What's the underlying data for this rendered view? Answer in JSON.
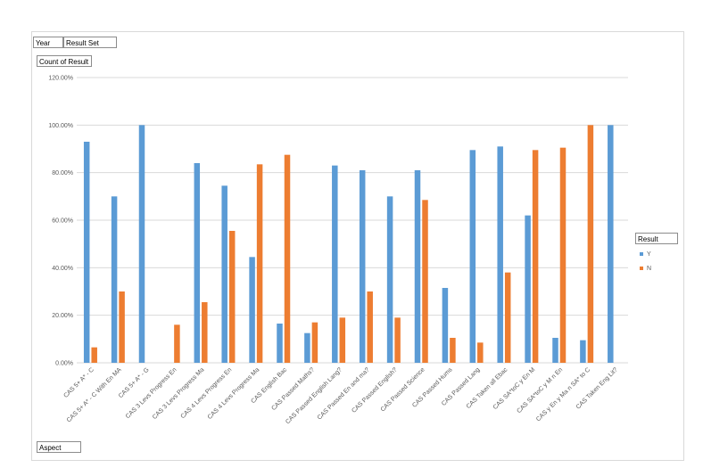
{
  "pivot_fields": {
    "filter_year": "Year",
    "filter_result_set": "Result Set",
    "values_field": "Count of Result",
    "legend_field": "Result",
    "axis_field": "Aspect"
  },
  "colors": {
    "Y": "#5b9bd5",
    "N": "#ed7d31",
    "grid": "#d9d9d9"
  },
  "chart_data": {
    "type": "bar",
    "title": "",
    "xlabel": "",
    "ylabel": "",
    "ylim": [
      0,
      120
    ],
    "yticks": [
      0,
      20,
      40,
      60,
      80,
      100,
      120
    ],
    "ytick_labels": [
      "0.00%",
      "20.00%",
      "40.00%",
      "60.00%",
      "80.00%",
      "100.00%",
      "120.00%"
    ],
    "grid": true,
    "legend_position": "right",
    "categories": [
      "CAS 5+ A* - C",
      "CAS 5+ A* - C With En MA",
      "CAS 5+ A* - G",
      "CAS 3 Levs Progress En",
      "CAS 3 Levs Progress Ma",
      "CAS 4 Levs Progress En",
      "CAS 4 Levs Progress Ma",
      "CAS English Bac",
      "CAS Passed Maths?",
      "CAS Passed English Lang?",
      "CAS Passed En and ma?",
      "CAS Passed English?",
      "CAS Passed Science",
      "CAS Passed Hums",
      "CAS Passed Lang",
      "CAS Taken all Ebac",
      "CAS SA*toC y En M",
      "CAS SA*toC y M n En",
      "CAS y En y Ma n SA* to C",
      "CAS Taken Eng Lit?"
    ],
    "series": [
      {
        "name": "Y",
        "values": [
          93,
          70,
          100,
          null,
          84,
          74.5,
          44.5,
          16.5,
          12.5,
          83,
          81,
          70,
          81,
          31.5,
          89.5,
          91,
          62,
          10.5,
          9.5,
          100
        ]
      },
      {
        "name": "N",
        "values": [
          6.5,
          30,
          null,
          16,
          25.5,
          55.5,
          83.5,
          87.5,
          17,
          19,
          30,
          19,
          68.5,
          10.5,
          8.5,
          38,
          89.5,
          90.5,
          100,
          null
        ]
      }
    ]
  }
}
